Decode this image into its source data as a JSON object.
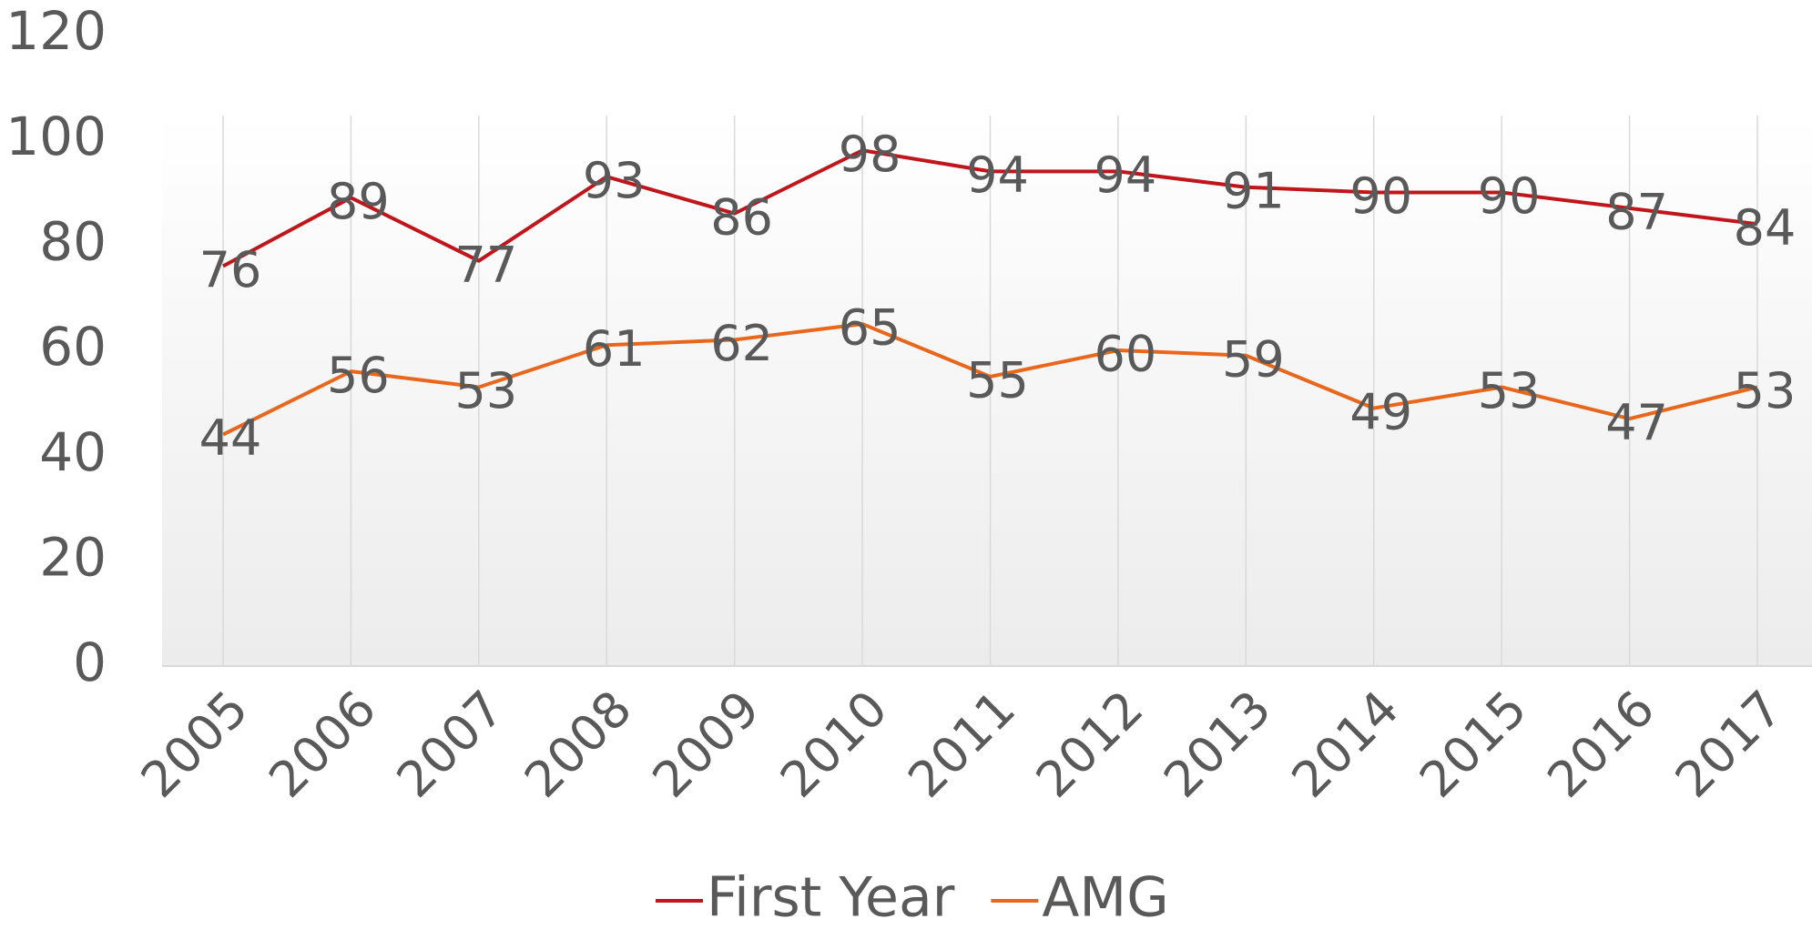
{
  "chart_data": {
    "type": "line",
    "categories": [
      "2005",
      "2006",
      "2007",
      "2008",
      "2009",
      "2010",
      "2011",
      "2012",
      "2013",
      "2014",
      "2015",
      "2016",
      "2017"
    ],
    "series": [
      {
        "name": "First Year",
        "color": "#c0161b",
        "values": [
          76,
          89,
          77,
          93,
          86,
          98,
          94,
          94,
          91,
          90,
          90,
          87,
          84
        ]
      },
      {
        "name": "AMG",
        "color": "#e8671c",
        "values": [
          44,
          56,
          53,
          61,
          62,
          65,
          55,
          60,
          59,
          49,
          53,
          47,
          53
        ]
      }
    ],
    "ylim": [
      0,
      120
    ],
    "yticks": [
      0,
      20,
      40,
      60,
      80,
      100,
      120
    ],
    "grid": true,
    "legend": "bottom"
  }
}
